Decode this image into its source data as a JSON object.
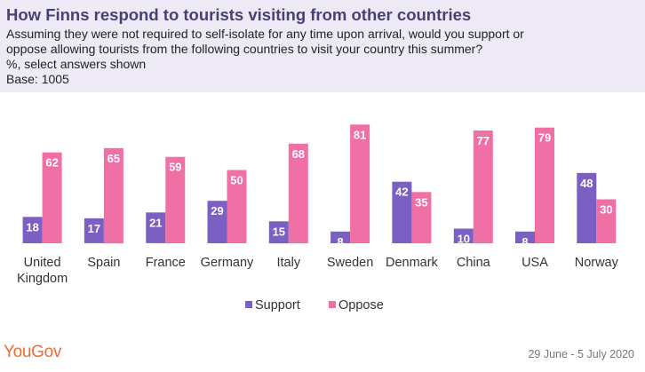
{
  "header": {
    "title": "How Finns respond to tourists visiting from other countries",
    "subtitle_lines": [
      "Assuming they were not required to self-isolate for any time upon arrival, would you support or",
      "oppose allowing tourists from the following countries to visit your country this summer?",
      "%, select answers shown",
      "Base: 1005"
    ]
  },
  "chart_data": {
    "type": "bar",
    "categories": [
      "United\nKingdom",
      "Spain",
      "France",
      "Germany",
      "Italy",
      "Sweden",
      "Denmark",
      "China",
      "USA",
      "Norway"
    ],
    "series": [
      {
        "name": "Support",
        "values": [
          18,
          17,
          21,
          29,
          15,
          8,
          42,
          10,
          8,
          48
        ],
        "color": "#7b5fc2"
      },
      {
        "name": "Oppose",
        "values": [
          62,
          65,
          59,
          50,
          68,
          81,
          35,
          77,
          79,
          30
        ],
        "color": "#f06fa5"
      }
    ],
    "ylim": [
      0,
      100
    ],
    "grid": false,
    "legend": "bottom-center"
  },
  "footer": {
    "brand": "YouGov",
    "date": "29 June - 5 July 2020"
  }
}
